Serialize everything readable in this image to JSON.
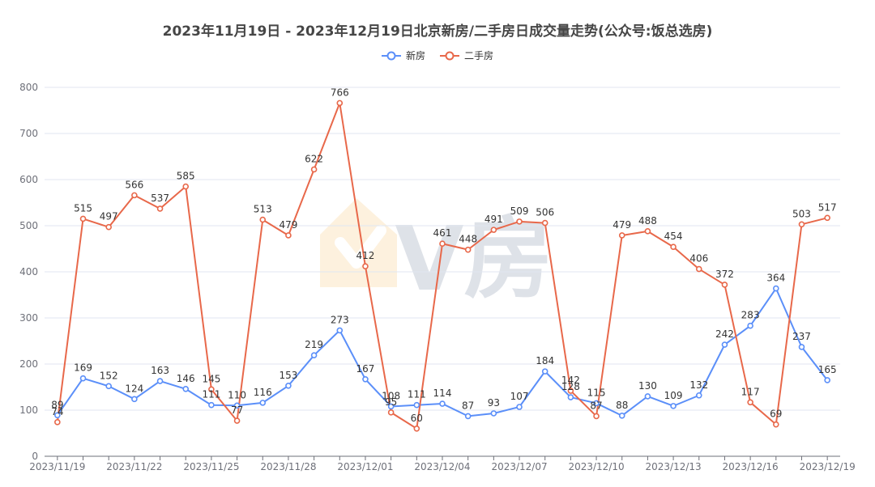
{
  "chart_data": {
    "type": "line",
    "title": "2023年11月19日 - 2023年12月19日北京新房/二手房日成交量走势(公众号:饭总选房)",
    "x": [
      "2023/11/19",
      "2023/11/20",
      "2023/11/21",
      "2023/11/22",
      "2023/11/23",
      "2023/11/24",
      "2023/11/25",
      "2023/11/26",
      "2023/11/27",
      "2023/11/28",
      "2023/11/29",
      "2023/11/30",
      "2023/12/01",
      "2023/12/02",
      "2023/12/03",
      "2023/12/04",
      "2023/12/05",
      "2023/12/06",
      "2023/12/07",
      "2023/12/08",
      "2023/12/09",
      "2023/12/10",
      "2023/12/11",
      "2023/12/12",
      "2023/12/13",
      "2023/12/14",
      "2023/12/15",
      "2023/12/16",
      "2023/12/17",
      "2023/12/18",
      "2023/12/19"
    ],
    "x_tick_labels": [
      "2023/11/19",
      "2023/11/22",
      "2023/11/25",
      "2023/11/28",
      "2023/12/01",
      "2023/12/04",
      "2023/12/07",
      "2023/12/10",
      "2023/12/13",
      "2023/12/16",
      "2023/12/19"
    ],
    "ylim": [
      0,
      800
    ],
    "yticks": [
      0,
      100,
      200,
      300,
      400,
      500,
      600,
      700,
      800
    ],
    "grid": true,
    "legend_position": "top-center",
    "series": [
      {
        "name": "新房",
        "color": "#5b8ff9",
        "values": [
          89,
          169,
          152,
          124,
          163,
          146,
          111,
          110,
          116,
          153,
          219,
          273,
          167,
          108,
          111,
          114,
          87,
          93,
          107,
          184,
          128,
          115,
          88,
          130,
          109,
          132,
          242,
          283,
          364,
          237,
          165
        ]
      },
      {
        "name": "二手房",
        "color": "#e8684a",
        "values": [
          74,
          515,
          497,
          566,
          537,
          585,
          145,
          77,
          513,
          479,
          622,
          766,
          412,
          95,
          60,
          461,
          448,
          491,
          509,
          506,
          142,
          87,
          479,
          488,
          454,
          406,
          372,
          117,
          69,
          503,
          517
        ]
      }
    ],
    "watermark": "V房"
  }
}
